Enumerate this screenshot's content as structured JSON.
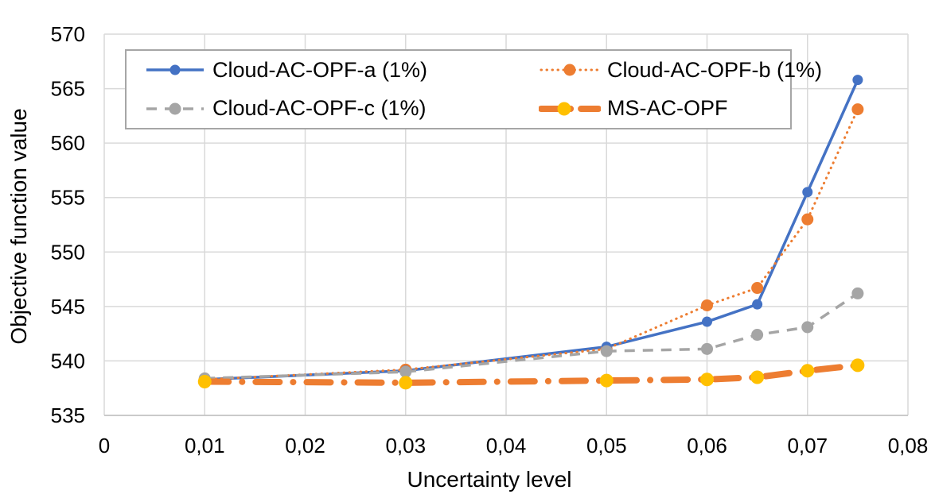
{
  "chart_data": {
    "type": "line",
    "title": "",
    "xlabel": "Uncertainty level",
    "ylabel": "Objective function value",
    "xlim": [
      0,
      0.08
    ],
    "ylim": [
      535,
      570
    ],
    "grid": true,
    "legend_position": "top-left-inside",
    "x_ticks": [
      {
        "v": 0,
        "label": "0"
      },
      {
        "v": 0.01,
        "label": "0,01"
      },
      {
        "v": 0.02,
        "label": "0,02"
      },
      {
        "v": 0.03,
        "label": "0,03"
      },
      {
        "v": 0.04,
        "label": "0,04"
      },
      {
        "v": 0.05,
        "label": "0,05"
      },
      {
        "v": 0.06,
        "label": "0,06"
      },
      {
        "v": 0.07,
        "label": "0,07"
      },
      {
        "v": 0.08,
        "label": "0,08"
      }
    ],
    "y_ticks": [
      {
        "v": 535,
        "label": "535"
      },
      {
        "v": 540,
        "label": "540"
      },
      {
        "v": 545,
        "label": "545"
      },
      {
        "v": 550,
        "label": "550"
      },
      {
        "v": 555,
        "label": "555"
      },
      {
        "v": 560,
        "label": "560"
      },
      {
        "v": 565,
        "label": "565"
      },
      {
        "v": 570,
        "label": "570"
      }
    ],
    "x": [
      0.01,
      0.03,
      0.05,
      0.06,
      0.065,
      0.07,
      0.075
    ],
    "series": [
      {
        "name": "Cloud-AC-OPF-a (1%)",
        "color": "#4472C4",
        "marker_color": "#4472C4",
        "style": "solid",
        "values": [
          538.3,
          539.1,
          541.3,
          543.6,
          545.2,
          555.5,
          565.8
        ]
      },
      {
        "name": "Cloud-AC-OPF-b (1%)",
        "color": "#ED7D31",
        "marker_color": "#ED7D31",
        "style": "dotted",
        "values": [
          538.3,
          539.2,
          541.1,
          545.1,
          546.7,
          553.0,
          563.1
        ]
      },
      {
        "name": "Cloud-AC-OPF-c (1%)",
        "color": "#A5A5A5",
        "marker_color": "#A5A5A5",
        "style": "dashed",
        "values": [
          538.4,
          539.0,
          540.9,
          541.1,
          542.4,
          543.1,
          546.2
        ]
      },
      {
        "name": "MS-AC-OPF",
        "color": "#ED7D31",
        "marker_color": "#FFC000",
        "style": "dashdot",
        "values": [
          538.1,
          538.0,
          538.2,
          538.3,
          538.5,
          539.1,
          539.6
        ]
      }
    ]
  },
  "colors": {
    "gridline": "#D9D9D9",
    "axis_line": "#BFBFBF",
    "text": "#000000",
    "legend_border": "#A6A6A6",
    "background": "#FFFFFF"
  }
}
